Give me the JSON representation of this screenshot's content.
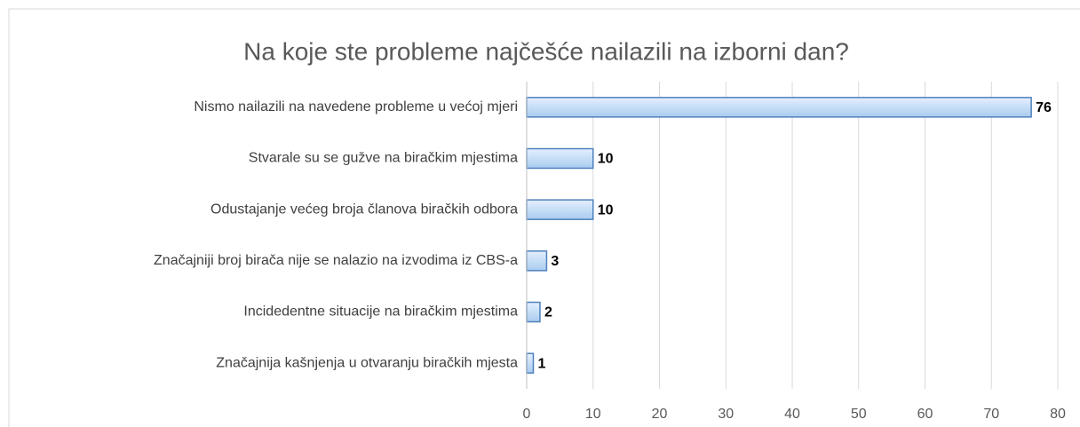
{
  "chart_data": {
    "type": "bar",
    "orientation": "horizontal",
    "title": "Na koje ste probleme najčešće nailazili na izborni dan?",
    "categories": [
      "Nismo nailazili na navedene probleme u većoj mjeri",
      "Stvarale su se gužve na biračkim mjestima",
      "Odustajanje većeg broja članova biračkih odbora",
      "Značajniji broj birača nije se nalazio na izvodima iz CBS-a",
      "Incidedentne situacije na biračkim mjestima",
      "Značajnija kašnjenja u otvaranju biračkih mjesta"
    ],
    "values": [
      76,
      10,
      10,
      3,
      2,
      1
    ],
    "color": "#c6def7",
    "xlim": [
      0,
      80
    ],
    "xticks": [
      0,
      10,
      20,
      30,
      40,
      50,
      60,
      70,
      80
    ],
    "grid": true
  }
}
